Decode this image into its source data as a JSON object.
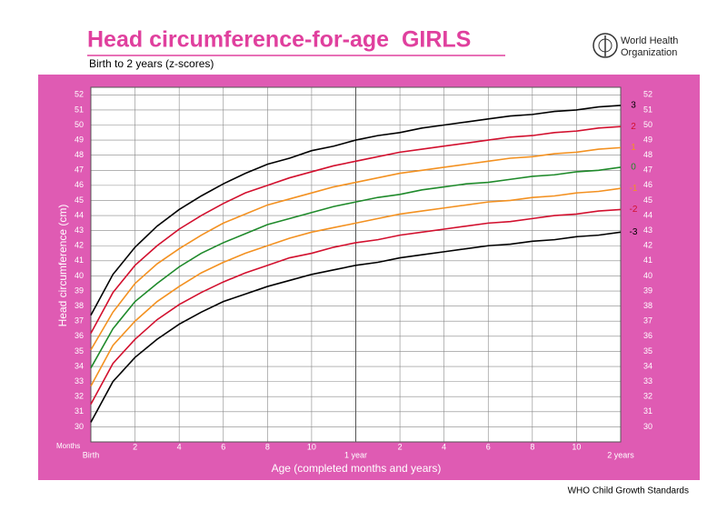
{
  "header": {
    "title": "Head circumference-for-age  GIRLS",
    "subtitle": "Birth to 2 years (z-scores)",
    "org": [
      "World Health",
      "Organization"
    ]
  },
  "footer": "WHO Child Growth Standards",
  "chart_data": {
    "type": "line",
    "x_label": "Age (completed months and years)",
    "x_unit_label": "Months",
    "y_label": "Head circumference (cm)",
    "x": [
      0,
      1,
      2,
      3,
      4,
      5,
      6,
      7,
      8,
      9,
      10,
      11,
      12,
      13,
      14,
      15,
      16,
      17,
      18,
      19,
      20,
      21,
      22,
      23,
      24
    ],
    "xlim": [
      0,
      24
    ],
    "xticks": [
      {
        "value": 0,
        "label": "Birth"
      },
      2,
      4,
      6,
      8,
      10,
      {
        "value": 12,
        "label": "1 year"
      },
      {
        "value": 14,
        "label": "2"
      },
      {
        "value": 16,
        "label": "4"
      },
      {
        "value": 18,
        "label": "6"
      },
      {
        "value": 20,
        "label": "8"
      },
      {
        "value": 22,
        "label": "10"
      },
      {
        "value": 24,
        "label": "2 years"
      }
    ],
    "ylim": [
      29,
      52.5
    ],
    "yticks": [
      30,
      31,
      32,
      33,
      34,
      35,
      36,
      37,
      38,
      39,
      40,
      41,
      42,
      43,
      44,
      45,
      46,
      47,
      48,
      49,
      50,
      51,
      52
    ],
    "grid": true,
    "series": [
      {
        "name": "3",
        "color": "#000000",
        "values": [
          37.4,
          40.1,
          41.9,
          43.3,
          44.4,
          45.3,
          46.1,
          46.8,
          47.4,
          47.8,
          48.3,
          48.6,
          49.0,
          49.3,
          49.5,
          49.8,
          50.0,
          50.2,
          50.4,
          50.6,
          50.7,
          50.9,
          51.0,
          51.2,
          51.3
        ]
      },
      {
        "name": "2",
        "color": "#d2102e",
        "values": [
          36.2,
          38.9,
          40.7,
          42.0,
          43.1,
          44.0,
          44.8,
          45.5,
          46.0,
          46.5,
          46.9,
          47.3,
          47.6,
          47.9,
          48.2,
          48.4,
          48.6,
          48.8,
          49.0,
          49.2,
          49.3,
          49.5,
          49.6,
          49.8,
          49.9
        ]
      },
      {
        "name": "1",
        "color": "#f39121",
        "values": [
          35.1,
          37.6,
          39.5,
          40.8,
          41.8,
          42.7,
          43.5,
          44.1,
          44.7,
          45.1,
          45.5,
          45.9,
          46.2,
          46.5,
          46.8,
          47.0,
          47.2,
          47.4,
          47.6,
          47.8,
          47.9,
          48.1,
          48.2,
          48.4,
          48.5
        ]
      },
      {
        "name": "0",
        "color": "#1f8a2b",
        "values": [
          33.9,
          36.5,
          38.3,
          39.5,
          40.6,
          41.5,
          42.2,
          42.8,
          43.4,
          43.8,
          44.2,
          44.6,
          44.9,
          45.2,
          45.4,
          45.7,
          45.9,
          46.1,
          46.2,
          46.4,
          46.6,
          46.7,
          46.9,
          47.0,
          47.2
        ]
      },
      {
        "name": "-1",
        "color": "#f39121",
        "values": [
          32.7,
          35.4,
          37.0,
          38.3,
          39.3,
          40.2,
          40.9,
          41.5,
          42.0,
          42.5,
          42.9,
          43.2,
          43.5,
          43.8,
          44.1,
          44.3,
          44.5,
          44.7,
          44.9,
          45.0,
          45.2,
          45.3,
          45.5,
          45.6,
          45.8
        ]
      },
      {
        "name": "-2",
        "color": "#d2102e",
        "values": [
          31.5,
          34.2,
          35.8,
          37.1,
          38.1,
          38.9,
          39.6,
          40.2,
          40.7,
          41.2,
          41.5,
          41.9,
          42.2,
          42.4,
          42.7,
          42.9,
          43.1,
          43.3,
          43.5,
          43.6,
          43.8,
          44.0,
          44.1,
          44.3,
          44.4
        ]
      },
      {
        "name": "-3",
        "color": "#000000",
        "values": [
          30.3,
          33.0,
          34.6,
          35.8,
          36.8,
          37.6,
          38.3,
          38.8,
          39.3,
          39.7,
          40.1,
          40.4,
          40.7,
          40.9,
          41.2,
          41.4,
          41.6,
          41.8,
          42.0,
          42.1,
          42.3,
          42.4,
          42.6,
          42.7,
          42.9
        ]
      }
    ]
  }
}
